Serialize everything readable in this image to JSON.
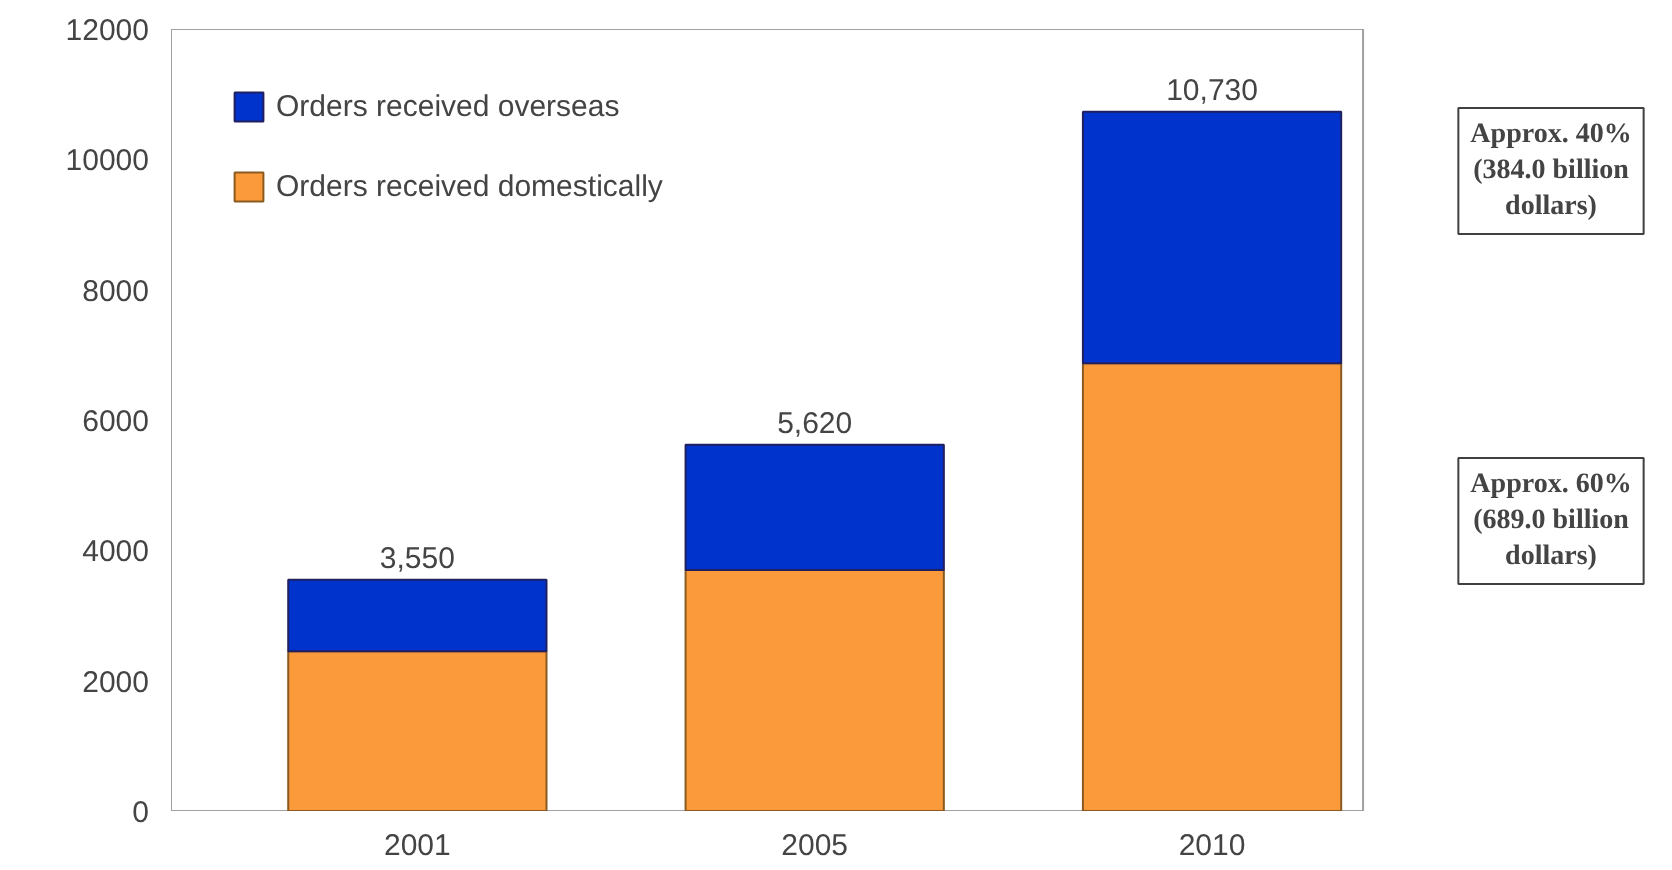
{
  "chart_data": {
    "type": "bar",
    "stacked": true,
    "categories": [
      "2001",
      "2005",
      "2010"
    ],
    "series": [
      {
        "name": "Orders received domestically",
        "color": "#fb9a3a",
        "values": [
          2450,
          3700,
          6870
        ]
      },
      {
        "name": "Orders received overseas",
        "color": "#0033cc",
        "values": [
          1100,
          1920,
          3860
        ]
      }
    ],
    "totals": [
      "3,550",
      "5,620",
      "10,730"
    ],
    "ylim": [
      0,
      12000
    ],
    "yticks": [
      0,
      2000,
      4000,
      6000,
      8000,
      10000,
      12000
    ],
    "grid": false,
    "legend": "top left",
    "annotations": [
      "Approx. 40%\n(384.0 billion\ndollars)",
      "Approx. 60%\n(689.0 billion\ndollars)"
    ]
  }
}
